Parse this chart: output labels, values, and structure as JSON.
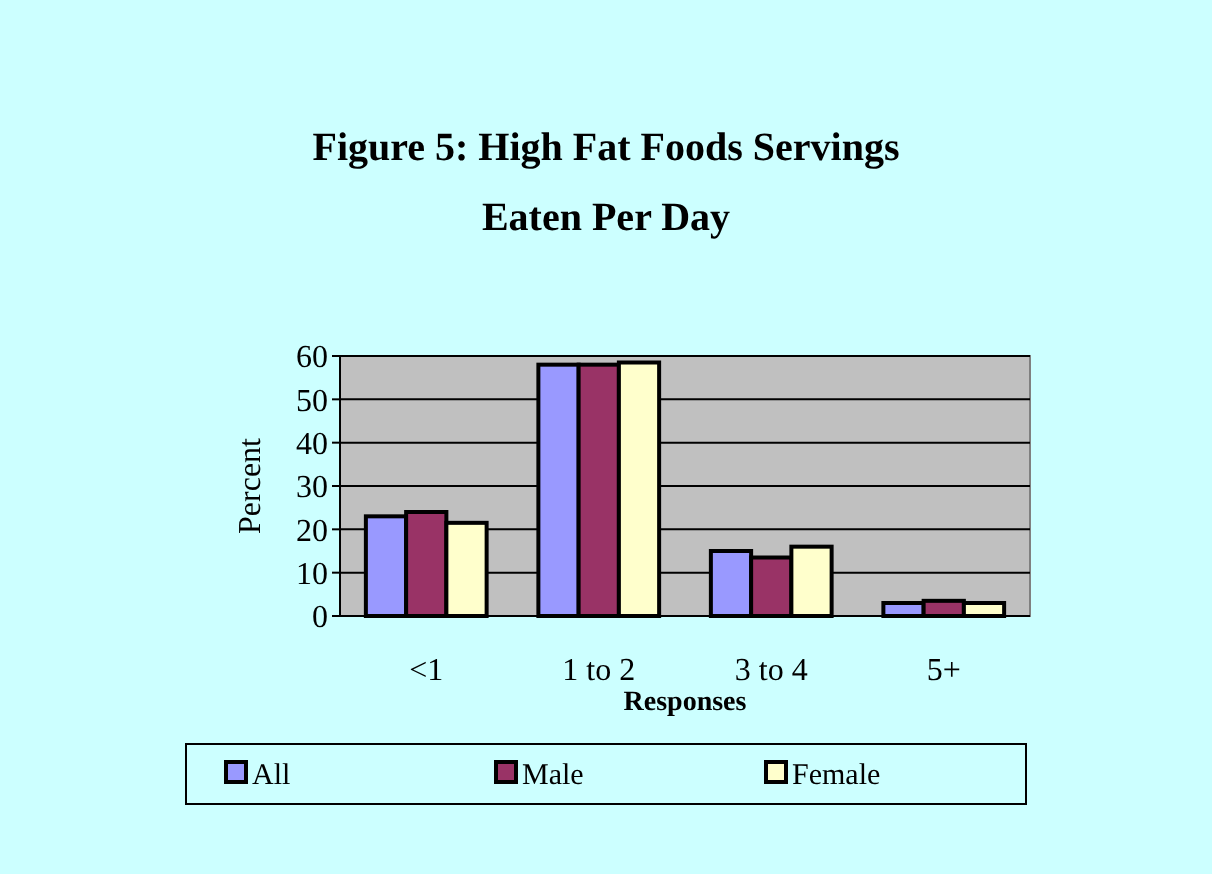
{
  "chart_data": {
    "type": "bar",
    "title": "Figure 5: High Fat Foods Servings Eaten Per Day",
    "xlabel": "Responses",
    "ylabel": "Percent",
    "categories": [
      "<1",
      "1 to 2",
      "3 to 4",
      "5+"
    ],
    "series": [
      {
        "name": "All",
        "color": "#9999ff",
        "values": [
          23,
          58,
          15,
          3
        ]
      },
      {
        "name": "Male",
        "color": "#993366",
        "values": [
          24,
          58,
          13.5,
          3.5
        ]
      },
      {
        "name": "Female",
        "color": "#ffffcc",
        "values": [
          21.5,
          58.5,
          16,
          3
        ]
      }
    ],
    "ylim": [
      0,
      60
    ],
    "yticks": [
      0,
      10,
      20,
      30,
      40,
      50,
      60
    ],
    "grid": "y",
    "legend": "bottom"
  }
}
